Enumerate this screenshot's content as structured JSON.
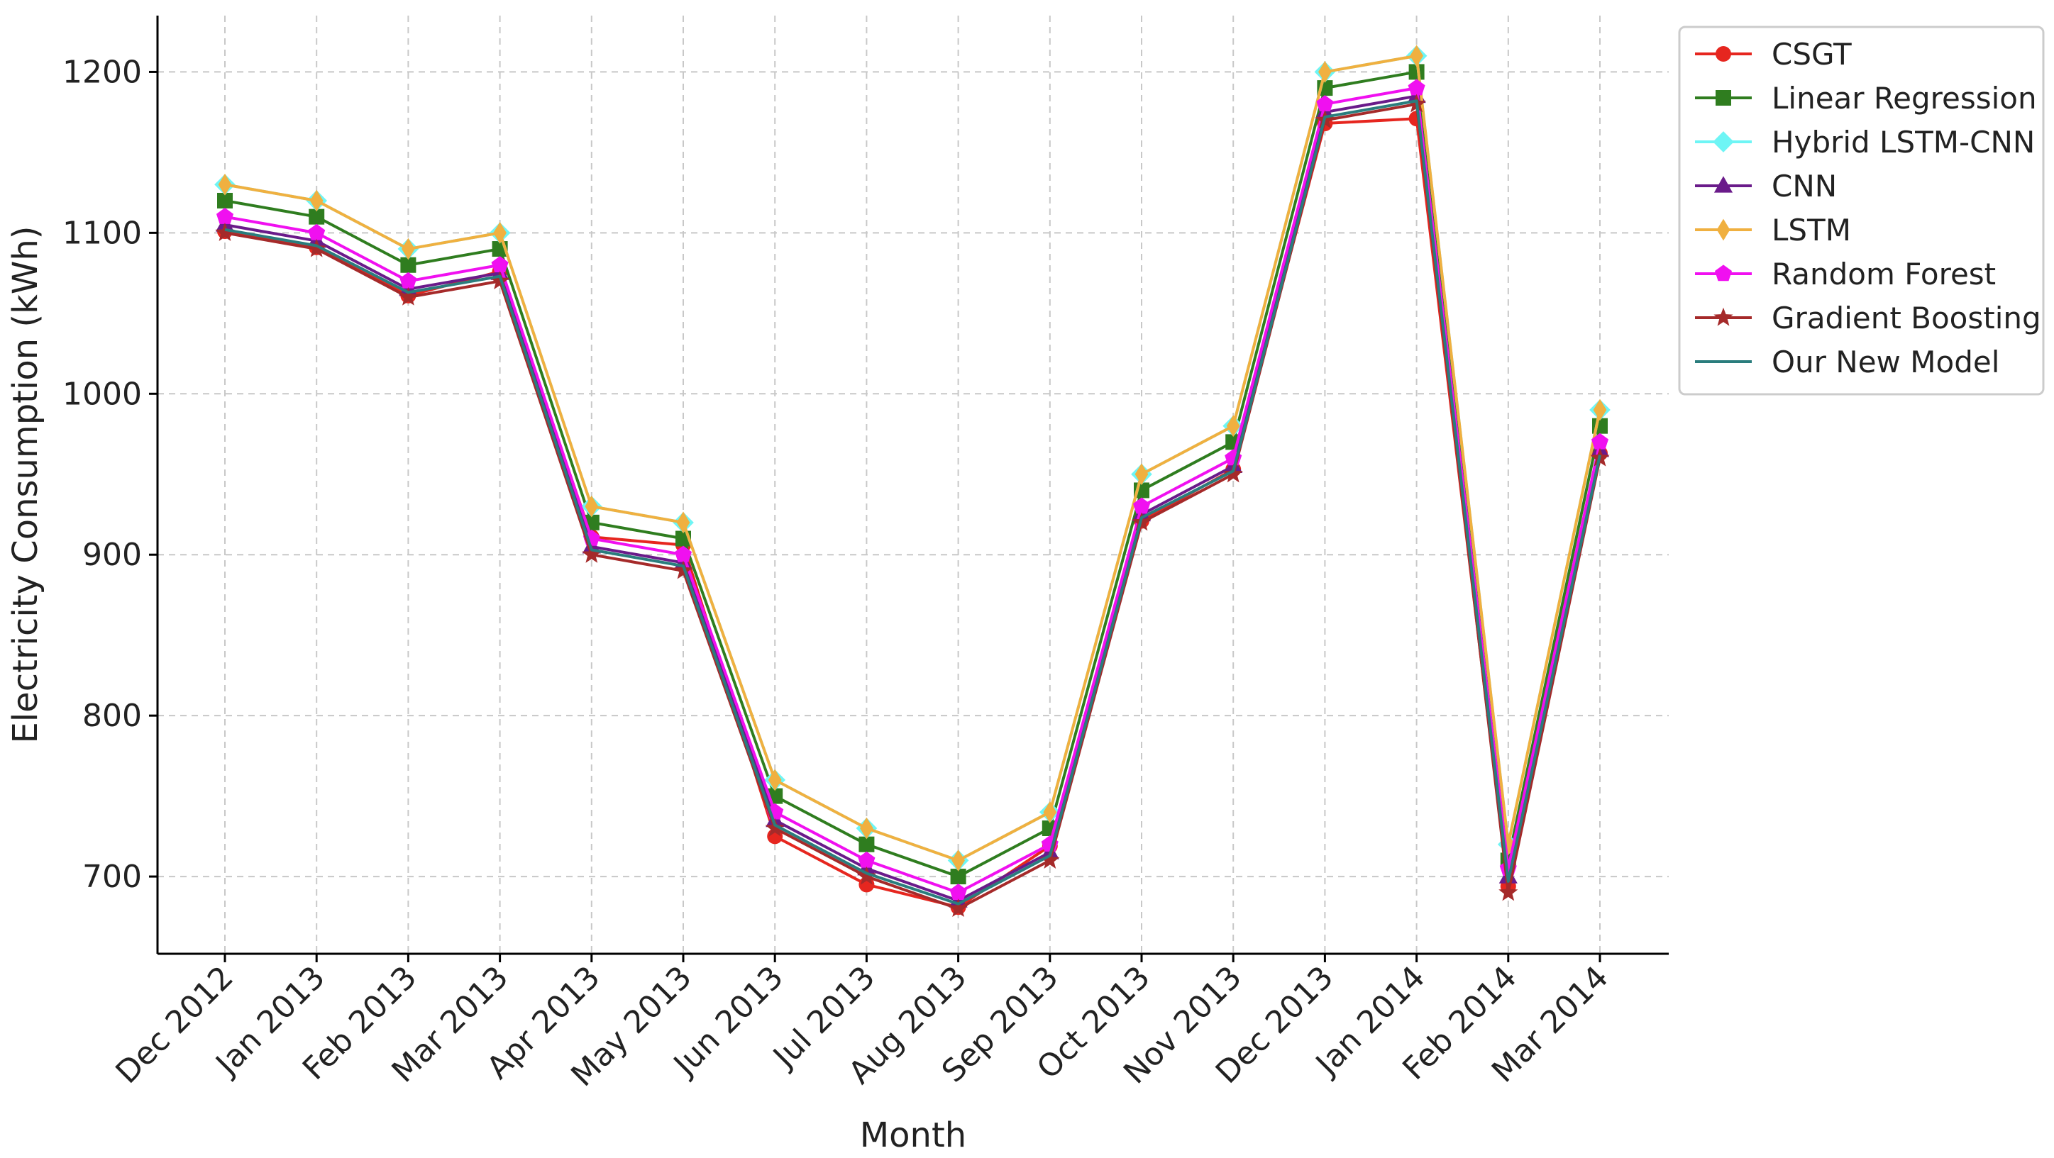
{
  "chart_data": {
    "type": "line",
    "title": "",
    "xlabel": "Month",
    "ylabel": "Electricity Consumption (kWh)",
    "ylim": [
      652,
      1235
    ],
    "yticks": [
      700,
      800,
      900,
      1000,
      1100,
      1200
    ],
    "grid": true,
    "legend_position": "top-right",
    "categories": [
      "Dec 2012",
      "Jan 2013",
      "Feb 2013",
      "Mar 2013",
      "Apr 2013",
      "May 2013",
      "Jun 2013",
      "Jul 2013",
      "Aug 2013",
      "Sep 2013",
      "Oct 2013",
      "Nov 2013",
      "Dec 2013",
      "Jan 2014",
      "Feb 2014",
      "Mar 2014"
    ],
    "series": [
      {
        "name": "CSGT",
        "color": "#e6261f",
        "marker": "circle",
        "values": [
          1101,
          1091,
          1061,
          1076,
          911,
          906,
          725,
          695,
          681,
          719,
          921,
          953,
          1168,
          1171,
          694,
          963
        ]
      },
      {
        "name": "Linear Regression",
        "color": "#2f7d1f",
        "marker": "square",
        "values": [
          1120,
          1110,
          1080,
          1090,
          920,
          910,
          750,
          720,
          700,
          730,
          940,
          970,
          1190,
          1200,
          710,
          980
        ]
      },
      {
        "name": "Hybrid LSTM-CNN",
        "color": "#6ef5f5",
        "marker": "diamond",
        "values": [
          1130,
          1120,
          1090,
          1100,
          930,
          920,
          760,
          730,
          710,
          740,
          950,
          980,
          1200,
          1210,
          720,
          990
        ]
      },
      {
        "name": "CNN",
        "color": "#6a1b8a",
        "marker": "triangle",
        "values": [
          1105,
          1095,
          1065,
          1075,
          905,
          895,
          735,
          705,
          685,
          715,
          925,
          955,
          1175,
          1185,
          700,
          965
        ]
      },
      {
        "name": "LSTM",
        "color": "#f0b040",
        "marker": "thin-diamond",
        "values": [
          1130,
          1120,
          1090,
          1100,
          930,
          920,
          760,
          730,
          710,
          740,
          950,
          980,
          1200,
          1210,
          720,
          990
        ]
      },
      {
        "name": "Random Forest",
        "color": "#f010f0",
        "marker": "pentagon",
        "values": [
          1110,
          1100,
          1070,
          1080,
          910,
          900,
          740,
          710,
          690,
          720,
          930,
          960,
          1180,
          1190,
          705,
          970
        ]
      },
      {
        "name": "Gradient Boosting",
        "color": "#a52a2a",
        "marker": "star",
        "values": [
          1100,
          1090,
          1060,
          1070,
          900,
          890,
          730,
          700,
          680,
          710,
          920,
          950,
          1170,
          1180,
          690,
          960
        ]
      },
      {
        "name": "Our New Model",
        "color": "#2a7d7d",
        "marker": "none",
        "values": [
          1102,
          1092,
          1063,
          1073,
          903,
          893,
          732,
          702,
          683,
          713,
          923,
          952,
          1172,
          1182,
          697,
          962
        ]
      }
    ]
  }
}
